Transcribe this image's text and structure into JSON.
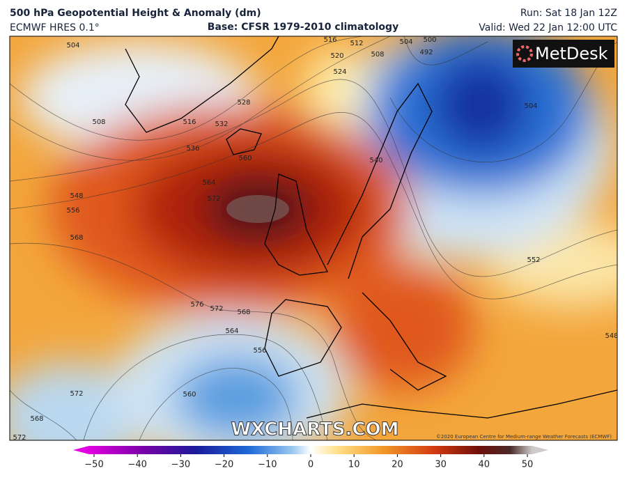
{
  "header": {
    "title": "500 hPa Geopotential Height & Anomaly (dm)",
    "model": "ECMWF HRES 0.1°",
    "base": "Base: CFSR 1979-2010 climatology",
    "run": "Run: Sat 18 Jan 12Z",
    "valid": "Valid: Wed 22 Jan 12:00 UTC"
  },
  "map": {
    "logo": "MetDesk",
    "watermark": "WXCHARTS.COM",
    "copyright": "©2020 European Centre for Medium-range Weather Forecasts (ECMWF)",
    "contour_labels": [
      "504",
      "508",
      "516",
      "536",
      "528",
      "532",
      "520",
      "524",
      "516",
      "512",
      "508",
      "504",
      "500",
      "492",
      "504",
      "540",
      "548",
      "556",
      "568",
      "564",
      "572",
      "560",
      "576",
      "572",
      "568",
      "564",
      "560",
      "556",
      "572",
      "568",
      "572",
      "552",
      "548"
    ]
  },
  "colorbar": {
    "range": [
      -50,
      50
    ],
    "ticks": [
      {
        "value": -50,
        "label": "−50"
      },
      {
        "value": -40,
        "label": "−40"
      },
      {
        "value": -30,
        "label": "−30"
      },
      {
        "value": -20,
        "label": "−20"
      },
      {
        "value": -10,
        "label": "−10"
      },
      0,
      10,
      20,
      30,
      40,
      50
    ]
  }
}
